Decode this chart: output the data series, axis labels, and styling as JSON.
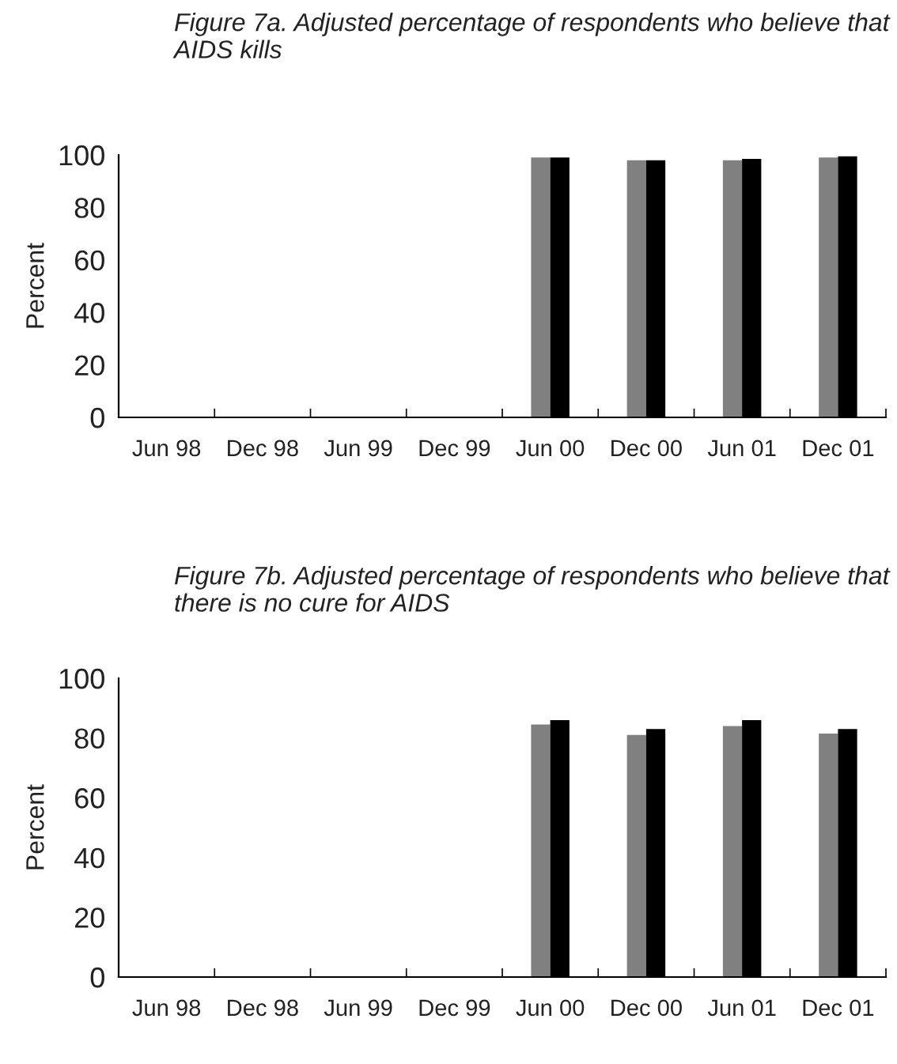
{
  "chart_data": [
    {
      "type": "bar",
      "title": "Figure 7a. Adjusted percentage of respondents who believe that AIDS kills",
      "ylabel": "Percent",
      "categories": [
        "Jun 98",
        "Dec 98",
        "Jun 99",
        "Dec 99",
        "Jun 00",
        "Dec 00",
        "Jun 01",
        "Dec 01"
      ],
      "series": [
        {
          "color": "#808080",
          "values": [
            null,
            null,
            null,
            null,
            99,
            98,
            98,
            99
          ]
        },
        {
          "color": "#000000",
          "values": [
            null,
            null,
            null,
            null,
            99,
            98,
            98.5,
            99.5
          ]
        }
      ],
      "ylim": [
        0,
        100
      ],
      "yticks": [
        0,
        20,
        40,
        60,
        80,
        100
      ],
      "grid": false,
      "legend": false
    },
    {
      "type": "bar",
      "title": "Figure 7b. Adjusted percentage of respondents who believe that there is no cure for AIDS",
      "ylabel": "Percent",
      "categories": [
        "Jun 98",
        "Dec 98",
        "Jun 99",
        "Dec 99",
        "Jun 00",
        "Dec 00",
        "Jun 01",
        "Dec 01"
      ],
      "series": [
        {
          "color": "#808080",
          "values": [
            null,
            null,
            null,
            null,
            84.5,
            81,
            84,
            81.5
          ]
        },
        {
          "color": "#000000",
          "values": [
            null,
            null,
            null,
            null,
            86,
            83,
            86,
            83
          ]
        }
      ],
      "ylim": [
        0,
        100
      ],
      "yticks": [
        0,
        20,
        40,
        60,
        80,
        100
      ],
      "grid": false,
      "legend": false
    }
  ]
}
